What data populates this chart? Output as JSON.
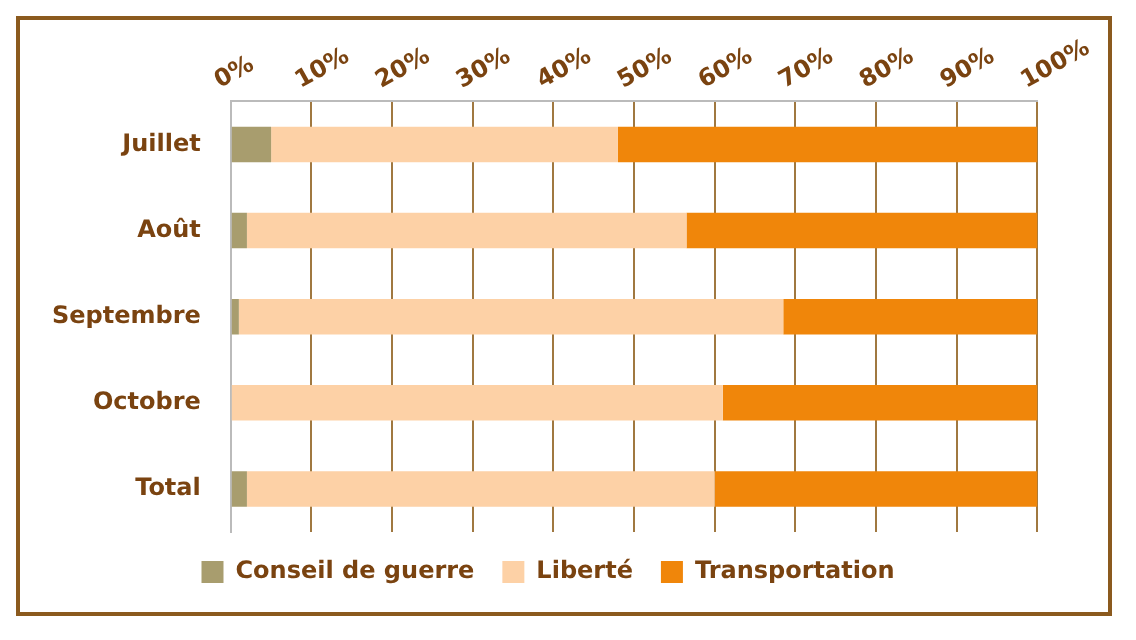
{
  "chart_data": {
    "type": "bar",
    "orientation": "horizontal",
    "stacked": true,
    "categories": [
      "Juillet",
      "Août",
      "Septembre",
      "Octobre",
      "Total"
    ],
    "series": [
      {
        "name": "Conseil de guerre",
        "color": "#a89d6e",
        "values": [
          5,
          2,
          1,
          0,
          2
        ]
      },
      {
        "name": "Liberté",
        "color": "#fdd1a6",
        "values": [
          43,
          54.5,
          67.5,
          61,
          58
        ]
      },
      {
        "name": "Transportation",
        "color": "#f0860a",
        "values": [
          52,
          43.5,
          31.5,
          39,
          40
        ]
      }
    ],
    "xlim": [
      0,
      100
    ],
    "xticks": [
      {
        "value": 0,
        "label": "0%"
      },
      {
        "value": 10,
        "label": "10%"
      },
      {
        "value": 20,
        "label": "20%"
      },
      {
        "value": 30,
        "label": "30%"
      },
      {
        "value": 40,
        "label": "40%"
      },
      {
        "value": 50,
        "label": "50%"
      },
      {
        "value": 60,
        "label": "60%"
      },
      {
        "value": 70,
        "label": "70%"
      },
      {
        "value": 80,
        "label": "80%"
      },
      {
        "value": 90,
        "label": "90%"
      },
      {
        "value": 100,
        "label": "100%"
      }
    ],
    "grid": "x",
    "legend": "bottom"
  }
}
